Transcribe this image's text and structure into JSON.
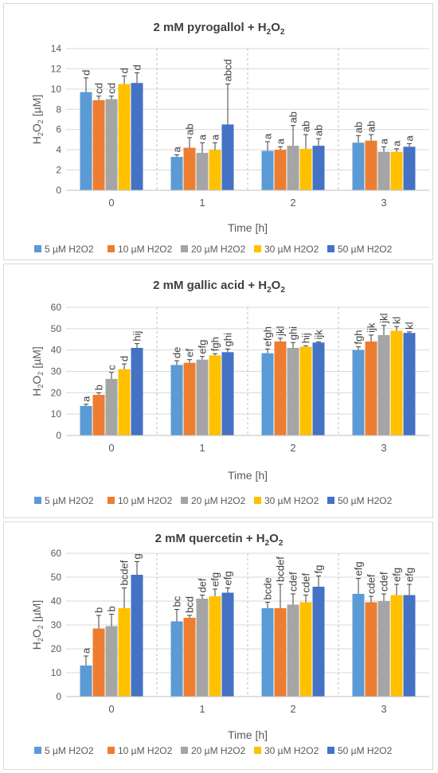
{
  "chart_data": [
    {
      "type": "bar",
      "title": "2 mM pyrogallol + H",
      "title_sub": "2",
      "title_mid": "O",
      "title_end": "2",
      "ylabel_main": "H",
      "ylabel_sub1": "2",
      "ylabel_mid": "O",
      "ylabel_sub2": "2",
      "ylabel_end": " [µM]",
      "xlabel": "Time [h]",
      "categories": [
        "0",
        "1",
        "2",
        "3"
      ],
      "ylim": [
        0,
        14
      ],
      "yticks": [
        "0",
        "2",
        "4",
        "6",
        "8",
        "10",
        "12",
        "14"
      ],
      "grid": true,
      "legend": "bottom",
      "series": [
        {
          "name": "5 µM H2O2",
          "color": "#5b9bd5",
          "values": [
            9.7,
            3.3,
            3.9,
            4.7
          ],
          "errors": [
            1.4,
            0.2,
            0.9,
            0.7
          ],
          "labels": [
            "d",
            "a",
            "a",
            "ab"
          ]
        },
        {
          "name": "10 µM H2O2",
          "color": "#ed7d31",
          "values": [
            8.9,
            4.2,
            4.0,
            4.9
          ],
          "errors": [
            0.4,
            1.0,
            0.3,
            0.6
          ],
          "labels": [
            "cd",
            "ab",
            "a",
            "ab"
          ]
        },
        {
          "name": "20 µM H2O2",
          "color": "#a5a5a5",
          "values": [
            9.0,
            3.7,
            4.4,
            3.8
          ],
          "errors": [
            0.3,
            1.0,
            2.0,
            0.5
          ],
          "labels": [
            "cd",
            "a",
            "ab",
            "a"
          ]
        },
        {
          "name": "30 µM H2O2",
          "color": "#ffc000",
          "values": [
            10.5,
            4.0,
            4.1,
            3.8
          ],
          "errors": [
            0.8,
            0.7,
            1.4,
            0.3
          ],
          "labels": [
            "d",
            "a",
            "ab",
            "a"
          ]
        },
        {
          "name": "50 µM H2O2",
          "color": "#4472c4",
          "values": [
            10.6,
            6.5,
            4.4,
            4.3
          ],
          "errors": [
            1.0,
            4.0,
            0.7,
            0.3
          ],
          "labels": [
            "d",
            "abcd",
            "ab",
            "a"
          ]
        }
      ]
    },
    {
      "type": "bar",
      "title": "2 mM gallic acid + H",
      "title_sub": "2",
      "title_mid": "O",
      "title_end": "2",
      "ylabel_main": "H",
      "ylabel_sub1": "2",
      "ylabel_mid": "O",
      "ylabel_sub2": "2",
      "ylabel_end": " [µM]",
      "xlabel": "Time [h]",
      "categories": [
        "0",
        "1",
        "2",
        "3"
      ],
      "ylim": [
        0,
        60
      ],
      "yticks": [
        "0",
        "10",
        "20",
        "30",
        "40",
        "50",
        "60"
      ],
      "grid": true,
      "legend": "bottom",
      "series": [
        {
          "name": "5 µM H2O2",
          "color": "#5b9bd5",
          "values": [
            13.8,
            33.0,
            38.5,
            40.0
          ],
          "errors": [
            0.8,
            2.0,
            2.0,
            1.5
          ],
          "labels": [
            "a",
            "de",
            "efgh",
            "fgh"
          ]
        },
        {
          "name": "10 µM H2O2",
          "color": "#ed7d31",
          "values": [
            19.0,
            34.0,
            44.0,
            44.0
          ],
          "errors": [
            1.0,
            1.5,
            1.5,
            3.0
          ],
          "labels": [
            "b",
            "ef",
            "jkl",
            "ijk"
          ]
        },
        {
          "name": "20 µM H2O2",
          "color": "#a5a5a5",
          "values": [
            26.5,
            35.5,
            41.0,
            47.0
          ],
          "errors": [
            3.0,
            1.5,
            2.5,
            4.5
          ],
          "labels": [
            "c",
            "efg",
            "ghi",
            "jkl"
          ]
        },
        {
          "name": "30 µM H2O2",
          "color": "#ffc000",
          "values": [
            31.0,
            37.5,
            41.5,
            49.0
          ],
          "errors": [
            2.5,
            0.8,
            0.5,
            2.0
          ],
          "labels": [
            "d",
            "fgh",
            "hij",
            "kl"
          ]
        },
        {
          "name": "50 µM H2O2",
          "color": "#4472c4",
          "values": [
            41.0,
            39.0,
            43.5,
            48.0
          ],
          "errors": [
            2.0,
            1.5,
            0.3,
            0.5
          ],
          "labels": [
            "hij",
            "ghi",
            "ijk",
            "kl"
          ]
        }
      ]
    },
    {
      "type": "bar",
      "title": "2 mM quercetin + H",
      "title_sub": "2",
      "title_mid": "O",
      "title_end": "2",
      "ylabel_main": "H",
      "ylabel_sub1": "2",
      "ylabel_mid": "O",
      "ylabel_sub2": "2",
      "ylabel_end": " [µM]",
      "xlabel": "Time [h]",
      "categories": [
        "0",
        "1",
        "2",
        "3"
      ],
      "ylim": [
        0,
        60
      ],
      "yticks": [
        "0",
        "10",
        "20",
        "30",
        "40",
        "50",
        "60"
      ],
      "grid": true,
      "legend": "bottom",
      "series": [
        {
          "name": "5 µM H2O2",
          "color": "#5b9bd5",
          "values": [
            13.0,
            31.5,
            37.0,
            43.0
          ],
          "errors": [
            4.0,
            5.0,
            2.5,
            6.5
          ],
          "labels": [
            "a",
            "bc",
            "bcde",
            "efg"
          ]
        },
        {
          "name": "10 µM H2O2",
          "color": "#ed7d31",
          "values": [
            28.5,
            33.0,
            37.0,
            39.5
          ],
          "errors": [
            5.5,
            1.0,
            10.0,
            2.5
          ],
          "labels": [
            "b",
            "bcd",
            "bcdef",
            "cdef"
          ]
        },
        {
          "name": "20 µM H2O2",
          "color": "#a5a5a5",
          "values": [
            29.5,
            41.0,
            38.5,
            40.0
          ],
          "errors": [
            5.0,
            1.5,
            4.5,
            3.0
          ],
          "labels": [
            "b",
            "def",
            "cdef",
            "cdef"
          ]
        },
        {
          "name": "30 µM H2O2",
          "color": "#ffc000",
          "values": [
            37.0,
            42.0,
            39.5,
            42.5
          ],
          "errors": [
            8.5,
            3.0,
            3.0,
            4.5
          ],
          "labels": [
            "bcdef",
            "efg",
            "cdef",
            "efg"
          ]
        },
        {
          "name": "50 µM H2O2",
          "color": "#4472c4",
          "values": [
            51.0,
            43.5,
            46.0,
            42.5
          ],
          "errors": [
            5.5,
            2.0,
            4.5,
            4.5
          ],
          "labels": [
            "g",
            "efg",
            "fg",
            "efg"
          ]
        }
      ]
    }
  ]
}
